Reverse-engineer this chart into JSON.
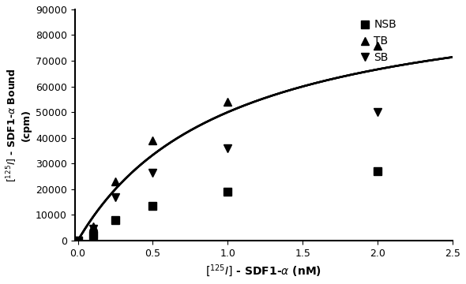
{
  "title": "",
  "xlabel": "[^{125}I] - SDF1-α (nM)",
  "ylabel": "[^{125}I] - SDF1-α Bound\n(cpm)",
  "xlim": [
    -0.02,
    2.5
  ],
  "ylim": [
    0,
    90000
  ],
  "xticks": [
    0.0,
    0.5,
    1.0,
    1.5,
    2.0,
    2.5
  ],
  "yticks": [
    0,
    10000,
    20000,
    30000,
    40000,
    50000,
    60000,
    70000,
    80000,
    90000
  ],
  "series": [
    {
      "label": "NSB",
      "marker": "s",
      "x_data": [
        0.0,
        0.1,
        0.25,
        0.5,
        1.0,
        2.0
      ],
      "y_data": [
        0,
        2200,
        8000,
        13500,
        19000,
        27000
      ]
    },
    {
      "label": "TB",
      "marker": "^",
      "x_data": [
        0.0,
        0.1,
        0.25,
        0.5,
        1.0,
        2.0
      ],
      "y_data": [
        0,
        5500,
        23000,
        39000,
        54000,
        76000
      ]
    },
    {
      "label": "SB",
      "marker": "v",
      "x_data": [
        0.0,
        0.1,
        0.25,
        0.5,
        1.0,
        2.0
      ],
      "y_data": [
        0,
        4500,
        17000,
        26500,
        36000,
        50000
      ]
    }
  ],
  "color": "#000000",
  "background_color": "#ffffff",
  "marker_size": 7,
  "line_width": 1.8
}
